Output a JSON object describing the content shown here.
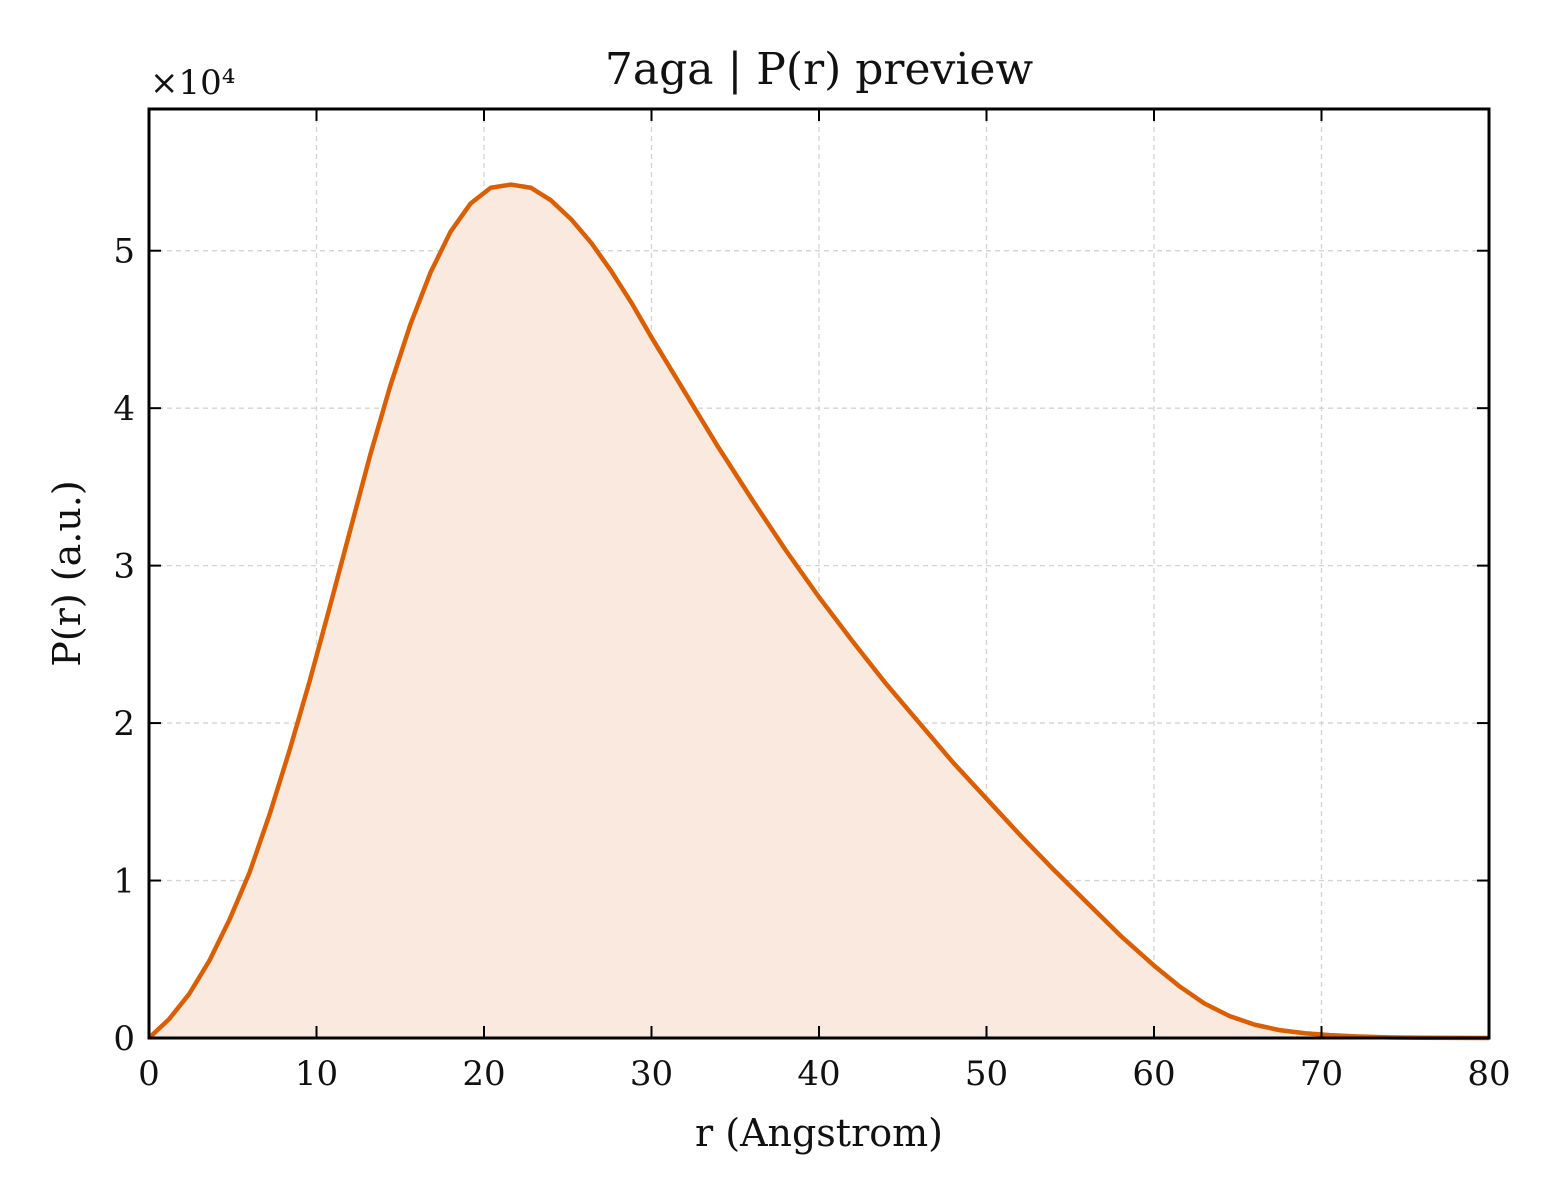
{
  "chart_data": {
    "type": "area",
    "title": "7aga | P(r) preview",
    "xlabel": "r (Angstrom)",
    "ylabel": "P(r) (a.u.)",
    "y_multiplier_label": "×10⁴",
    "xlim": [
      0,
      80
    ],
    "ylim": [
      0,
      5.9
    ],
    "xticks": [
      0,
      10,
      20,
      30,
      40,
      50,
      60,
      70,
      80
    ],
    "yticks": [
      0,
      1,
      2,
      3,
      4,
      5
    ],
    "grid": true,
    "line_color": "#d95f02",
    "fill_color": "#f9e9de",
    "x": [
      0,
      1.2,
      2.4,
      3.6,
      4.8,
      6,
      7.2,
      8.4,
      9.6,
      10.8,
      12,
      13.2,
      14.4,
      15.6,
      16.8,
      18,
      19.2,
      20.4,
      21.6,
      22.8,
      24,
      25.2,
      26.4,
      27.6,
      28.8,
      30,
      32,
      34,
      36,
      38,
      40,
      42,
      44,
      46,
      48,
      50,
      52,
      54,
      56,
      58,
      60,
      61.5,
      63,
      64.5,
      66,
      67.5,
      69,
      70.5,
      72,
      74,
      76,
      78,
      80
    ],
    "y": [
      0,
      0.12,
      0.28,
      0.49,
      0.75,
      1.05,
      1.42,
      1.83,
      2.27,
      2.74,
      3.22,
      3.7,
      4.14,
      4.53,
      4.86,
      5.12,
      5.3,
      5.4,
      5.42,
      5.4,
      5.32,
      5.2,
      5.05,
      4.87,
      4.67,
      4.45,
      4.1,
      3.75,
      3.42,
      3.1,
      2.8,
      2.52,
      2.25,
      2.0,
      1.75,
      1.52,
      1.29,
      1.07,
      0.86,
      0.65,
      0.46,
      0.33,
      0.22,
      0.14,
      0.085,
      0.05,
      0.03,
      0.018,
      0.01,
      0.004,
      0.002,
      0.001,
      0
    ]
  }
}
